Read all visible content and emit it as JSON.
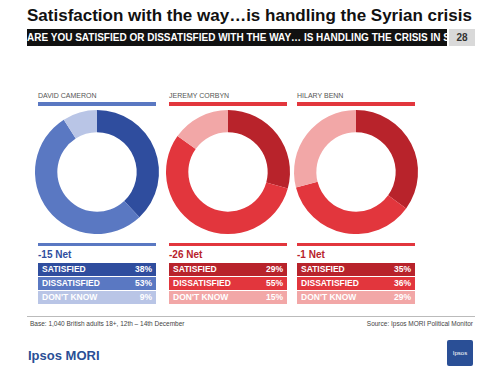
{
  "header": {
    "title": "Satisfaction with the way…is handling the Syrian crisis",
    "question": "ARE YOU SATISFIED OR DISSATISFIED WITH THE WAY… IS HANDLING THE CRISIS IN SYRIA?",
    "page": "28"
  },
  "chart_data": [
    {
      "type": "pie",
      "title": "DAVID CAMERON",
      "annotation": "-15 Net",
      "categories": [
        "SATISFIED",
        "DISSATISFIED",
        "DON'T KNOW"
      ],
      "values": [
        38,
        53,
        9
      ],
      "value_labels": [
        "38%",
        "53%",
        "9%"
      ],
      "colors": [
        "#2f4d9e",
        "#5a78c2",
        "#b9c5e6"
      ]
    },
    {
      "type": "pie",
      "title": "JEREMY CORBYN",
      "annotation": "-26 Net",
      "categories": [
        "SATISFIED",
        "DISSATISFIED",
        "DON'T KNOW"
      ],
      "values": [
        29,
        55,
        15
      ],
      "value_labels": [
        "29%",
        "55%",
        "15%"
      ],
      "colors": [
        "#b8232b",
        "#e2363d",
        "#f2a7a7"
      ]
    },
    {
      "type": "pie",
      "title": "HILARY BENN",
      "annotation": "-1 Net",
      "categories": [
        "SATISFIED",
        "DISSATISFIED",
        "DON'T KNOW"
      ],
      "values": [
        35,
        36,
        29
      ],
      "value_labels": [
        "35%",
        "36%",
        "29%"
      ],
      "colors": [
        "#b8232b",
        "#e2363d",
        "#f2a7a7"
      ]
    }
  ],
  "footer": {
    "base": "Base: 1,040 British adults 18+, 12th – 14th December",
    "source": "Source: Ipsos MORI Political Monitor",
    "logo": "Ipsos MORI",
    "mark": "Ipsos"
  }
}
